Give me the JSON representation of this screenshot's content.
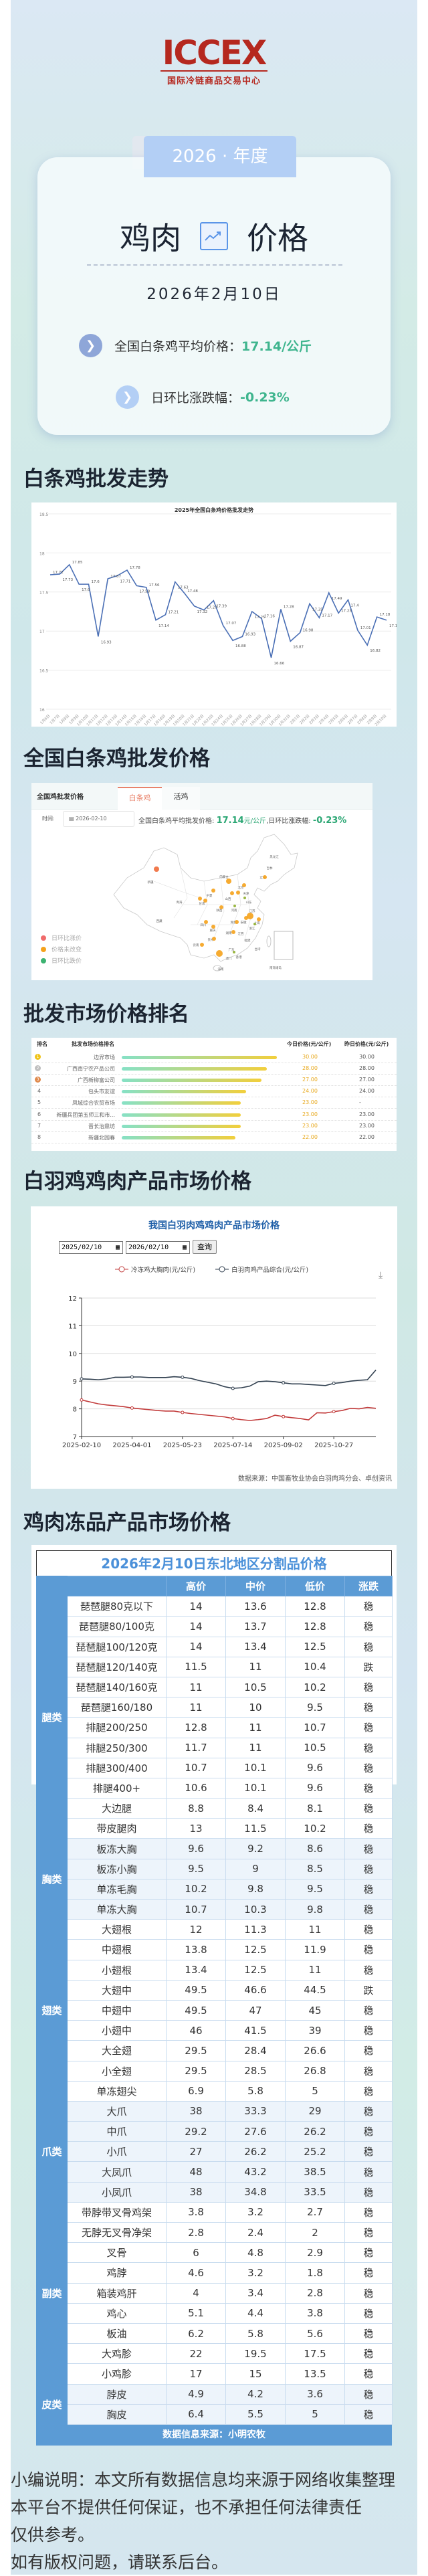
{
  "logo": {
    "text": "ICCEX",
    "subtitle": "国际冷链商品交易中心",
    "color": "#b5281f"
  },
  "header": {
    "year_tab": "2026 · 年度",
    "title_left": "鸡肉",
    "title_icon": "trend-chart-icon",
    "title_right": "价格",
    "date": "2026年2月10日",
    "avg_label": "全国白条鸡平均价格：",
    "avg_value": "17.14/公斤",
    "change_label": "日环比涨跌幅：",
    "change_value": "-0.23%",
    "accent": "#3fb58e"
  },
  "sections": {
    "trend": "白条鸡批发走势",
    "national": "全国白条鸡批发价格",
    "ranking": "批发市场价格排名",
    "white_feather": "白羽鸡鸡肉产品市场价格",
    "frozen": "鸡肉冻品产品市场价格"
  },
  "chart_data": [
    {
      "type": "line",
      "title": "2025年全国白条鸡价格批发走势",
      "ylim": [
        16,
        18.5
      ],
      "yticks": [
        16,
        16.5,
        17,
        17.5,
        18,
        18.5
      ],
      "grid": true,
      "categories": [
        "1月6日",
        "1月7日",
        "1月8日",
        "1月9日",
        "1月10日",
        "1月11日",
        "1月12日",
        "1月13日",
        "1月14日",
        "1月15日",
        "1月16日",
        "1月17日",
        "1月18日",
        "1月19日",
        "1月20日",
        "1月21日",
        "1月22日",
        "1月23日",
        "1月24日",
        "1月25日",
        "1月26日",
        "1月27日",
        "1月28日",
        "1月29日",
        "1月30日",
        "1月31日",
        "2月1日",
        "2月2日",
        "2月3日",
        "2月4日",
        "2月5日",
        "2月6日",
        "2月7日",
        "2月8日",
        "2月9日",
        "2月10日"
      ],
      "values": [
        17.72,
        17.73,
        17.85,
        17.6,
        17.6,
        16.93,
        17.67,
        17.71,
        17.78,
        17.58,
        17.56,
        17.14,
        17.21,
        17.63,
        17.48,
        17.32,
        17.27,
        17.39,
        17.07,
        16.88,
        16.93,
        17.25,
        17.16,
        16.66,
        17.28,
        16.87,
        16.98,
        17.35,
        17.17,
        17.49,
        17.23,
        17.4,
        17.01,
        16.82,
        17.18,
        17.14
      ],
      "color": "#4a6fb5"
    },
    {
      "type": "line",
      "title": "我国白羽肉鸡鸡肉产品市场价格",
      "ylim": [
        7,
        12
      ],
      "yticks": [
        7,
        8,
        9,
        10,
        11,
        12
      ],
      "grid": true,
      "legend": "top",
      "xticks": [
        "2025-02-10",
        "2025-04-01",
        "2025-05-23",
        "2025-07-14",
        "2025-09-02",
        "2025-10-27"
      ],
      "series": [
        {
          "name": "冷冻鸡大胸肉(元/公斤)",
          "color": "#c23b3b",
          "values": [
            8.32,
            8.25,
            8.18,
            8.14,
            8.11,
            8.08,
            8.03,
            8.0,
            7.97,
            7.94,
            7.92,
            7.92,
            7.87,
            7.83,
            7.8,
            7.77,
            7.74,
            7.71,
            7.65,
            7.61,
            7.58,
            7.61,
            7.65,
            7.77,
            7.72,
            7.68,
            7.65,
            7.6,
            7.86,
            7.85,
            7.9,
            7.94,
            8.02,
            8.0,
            8.05,
            8.02
          ]
        },
        {
          "name": "白羽肉鸡产品综合(元/公斤)",
          "color": "#2f3e4e",
          "values": [
            9.08,
            9.07,
            9.05,
            9.08,
            9.14,
            9.14,
            9.15,
            9.15,
            9.13,
            9.13,
            9.13,
            9.16,
            9.14,
            9.1,
            9.02,
            8.96,
            8.9,
            8.8,
            8.74,
            8.76,
            8.82,
            8.98,
            9.0,
            8.98,
            8.94,
            8.9,
            8.9,
            8.88,
            8.86,
            8.84,
            8.92,
            8.95,
            9.0,
            9.03,
            9.05,
            9.4
          ]
        }
      ],
      "start_date": "2025/02/10",
      "end_date": "2026/02/10",
      "query_label": "查询",
      "source": "数据来源：中国畜牧业协会白羽肉鸡分会、卓创资讯"
    }
  ],
  "national": {
    "panel_title": "全国鸡批发价格",
    "tabs": [
      {
        "label": "白条鸡",
        "active": true
      },
      {
        "label": "活鸡",
        "active": false
      }
    ],
    "time_label": "时间:",
    "date": "2026-02-10",
    "avg_label": "全国白条鸡平均批发价格:",
    "avg_value": "17.14",
    "avg_unit": "元/公斤",
    "change_label": ",日环比涨跌幅:",
    "change_value": "-0.23%",
    "legend": [
      {
        "label": "日环比涨价",
        "color": "#f06b6b"
      },
      {
        "label": "价格未改变",
        "color": "#f5a21b"
      },
      {
        "label": "日环比跌价",
        "color": "#3cb371"
      }
    ],
    "map_labels": [
      "新疆",
      "西藏",
      "青海",
      "甘肃",
      "宁夏",
      "内蒙古",
      "陕西",
      "山西",
      "北京",
      "天津",
      "山东",
      "河南",
      "江苏",
      "安徽",
      "上海",
      "湖北",
      "浙江",
      "四川",
      "重庆",
      "湖南",
      "江西",
      "福建",
      "贵州",
      "云南",
      "广东",
      "香港",
      "澳门",
      "海南",
      "台湾",
      "黑龙江",
      "吉林",
      "辽宁",
      "南海诸岛"
    ],
    "markers": [
      {
        "p": "新疆",
        "s": "up"
      },
      {
        "p": "内蒙古",
        "s": "same"
      },
      {
        "p": "北京",
        "s": "same"
      },
      {
        "p": "山西",
        "s": "same"
      },
      {
        "p": "河北",
        "s": "same"
      },
      {
        "p": "山东",
        "s": "down"
      },
      {
        "p": "河南",
        "s": "down"
      },
      {
        "p": "宁夏",
        "s": "same"
      },
      {
        "p": "甘肃",
        "s": "same"
      },
      {
        "p": "甘肃2",
        "s": "same"
      },
      {
        "p": "陕西",
        "s": "same"
      },
      {
        "p": "江苏",
        "s": "same"
      },
      {
        "p": "安徽",
        "s": "same"
      },
      {
        "p": "上海",
        "s": "same"
      },
      {
        "p": "浙江",
        "s": "down"
      },
      {
        "p": "湖北",
        "s": "same"
      },
      {
        "p": "四川",
        "s": "same"
      },
      {
        "p": "重庆",
        "s": "same"
      },
      {
        "p": "湖南",
        "s": "same"
      },
      {
        "p": "贵州",
        "s": "same"
      },
      {
        "p": "云南",
        "s": "same"
      },
      {
        "p": "广西",
        "s": "same"
      },
      {
        "p": "广东",
        "s": "down"
      },
      {
        "p": "辽宁",
        "s": "same"
      }
    ]
  },
  "ranking": {
    "headers": [
      "排名",
      "批发市场价格排名",
      "今日价格(元/公斤)",
      "昨日价格(元/公斤)"
    ],
    "max": 30,
    "rows": [
      {
        "rank": "1",
        "name": "边界市场",
        "today": "30.00",
        "yesterday": "30.00"
      },
      {
        "rank": "2",
        "name": "广西南宁农产品公司",
        "today": "28.00",
        "yesterday": "28.00"
      },
      {
        "rank": "3",
        "name": "广西新柳富公司",
        "today": "27.00",
        "yesterday": "27.00"
      },
      {
        "rank": "4",
        "name": "包头市友谊",
        "today": "24.00",
        "yesterday": "24.00"
      },
      {
        "rank": "5",
        "name": "凤城综合农贸市场",
        "today": "23.00",
        "yesterday": "-"
      },
      {
        "rank": "6",
        "name": "新疆兵团第五师三和市...",
        "today": "23.00",
        "yesterday": "23.00"
      },
      {
        "rank": "7",
        "name": "晋长治鼎坊",
        "today": "23.00",
        "yesterday": "23.00"
      },
      {
        "rank": "8",
        "name": "新疆北园春",
        "today": "22.00",
        "yesterday": "22.00"
      }
    ]
  },
  "frozen": {
    "title": "2026年2月10日东北地区分割品价格",
    "headers": [
      "",
      "",
      "高价",
      "中价",
      "低价",
      "涨跌"
    ],
    "source": "数据信息来源：小明农牧",
    "groups": [
      {
        "name": "腿类",
        "shade": false,
        "rows": [
          [
            "琵琶腿80克以下",
            "14",
            "13.6",
            "12.8",
            "稳"
          ],
          [
            "琵琶腿80/100克",
            "14",
            "13.7",
            "12.8",
            "稳"
          ],
          [
            "琵琶腿100/120克",
            "14",
            "13.4",
            "12.5",
            "稳"
          ],
          [
            "琵琶腿120/140克",
            "11.5",
            "11",
            "10.4",
            "跌"
          ],
          [
            "琵琶腿140/160克",
            "11",
            "10.5",
            "10.2",
            "稳"
          ],
          [
            "琵琶腿160/180",
            "11",
            "10",
            "9.5",
            "稳"
          ],
          [
            "排腿200/250",
            "12.8",
            "11",
            "10.7",
            "稳"
          ],
          [
            "排腿250/300",
            "11.7",
            "11",
            "10.5",
            "稳"
          ],
          [
            "排腿300/400",
            "10.7",
            "10.1",
            "9.6",
            "稳"
          ],
          [
            "排腿400+",
            "10.6",
            "10.1",
            "9.6",
            "稳"
          ],
          [
            "大边腿",
            "8.8",
            "8.4",
            "8.1",
            "稳"
          ],
          [
            "带皮腿肉",
            "13",
            "11.5",
            "10.2",
            "稳"
          ]
        ]
      },
      {
        "name": "胸类",
        "shade": true,
        "rows": [
          [
            "板冻大胸",
            "9.6",
            "9.2",
            "8.6",
            "稳"
          ],
          [
            "板冻小胸",
            "9.5",
            "9",
            "8.5",
            "稳"
          ],
          [
            "单冻毛胸",
            "10.2",
            "9.8",
            "9.5",
            "稳"
          ],
          [
            "单冻大胸",
            "10.7",
            "10.3",
            "9.8",
            "稳"
          ]
        ]
      },
      {
        "name": "翅类",
        "shade": false,
        "rows": [
          [
            "大翅根",
            "12",
            "11.3",
            "11",
            "稳"
          ],
          [
            "中翅根",
            "13.8",
            "12.5",
            "11.9",
            "稳"
          ],
          [
            "小翅根",
            "13.4",
            "12.5",
            "11",
            "稳"
          ],
          [
            "大翅中",
            "49.5",
            "46.6",
            "44.5",
            "跌"
          ],
          [
            "中翅中",
            "49.5",
            "47",
            "45",
            "稳"
          ],
          [
            "小翅中",
            "46",
            "41.5",
            "39",
            "稳"
          ],
          [
            "大全翅",
            "29.5",
            "28.4",
            "26.6",
            "稳"
          ],
          [
            "小全翅",
            "29.5",
            "28.5",
            "26.8",
            "稳"
          ],
          [
            "单冻翅尖",
            "6.9",
            "5.8",
            "5",
            "稳"
          ]
        ]
      },
      {
        "name": "爪类",
        "shade": true,
        "rows": [
          [
            "大爪",
            "38",
            "33.3",
            "29",
            "稳"
          ],
          [
            "中爪",
            "29.2",
            "27.6",
            "26.2",
            "稳"
          ],
          [
            "小爪",
            "27",
            "26.2",
            "25.2",
            "稳"
          ],
          [
            "大凤爪",
            "48",
            "43.2",
            "38.5",
            "稳"
          ],
          [
            "小凤爪",
            "38",
            "34.8",
            "33.5",
            "稳"
          ]
        ]
      },
      {
        "name": "副类",
        "shade": false,
        "rows": [
          [
            "带脖带叉骨鸡架",
            "3.8",
            "3.2",
            "2.7",
            "稳"
          ],
          [
            "无脖无叉骨净架",
            "2.8",
            "2.4",
            "2",
            "稳"
          ],
          [
            "叉骨",
            "6",
            "4.8",
            "2.9",
            "稳"
          ],
          [
            "鸡脖",
            "4.6",
            "3.2",
            "1.8",
            "稳"
          ],
          [
            "箱装鸡肝",
            "4",
            "3.4",
            "2.8",
            "稳"
          ],
          [
            "鸡心",
            "5.1",
            "4.4",
            "3.8",
            "稳"
          ],
          [
            "板油",
            "6.2",
            "5.8",
            "5.6",
            "稳"
          ],
          [
            "大鸡胗",
            "22",
            "19.5",
            "17.5",
            "稳"
          ],
          [
            "小鸡胗",
            "17",
            "15",
            "13.5",
            "稳"
          ]
        ]
      },
      {
        "name": "皮类",
        "shade": true,
        "rows": [
          [
            "脖皮",
            "4.9",
            "4.2",
            "3.6",
            "稳"
          ],
          [
            "胸皮",
            "6.4",
            "5.5",
            "5",
            "稳"
          ]
        ]
      }
    ]
  },
  "footer": {
    "lines": [
      "小编说明：本文所有数据信息均来源于网络收集整理",
      "本平台不提供任何保证，也不承担任何法律责任",
      "仅供参考。",
      "如有版权问题，请联系后台。"
    ]
  }
}
